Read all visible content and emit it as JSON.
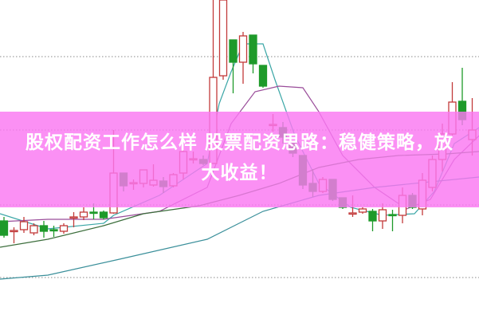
{
  "title": {
    "line1": "股权配资工作怎么样 股票配资思路：稳健策略，放",
    "line2": "大收益！"
  },
  "colors": {
    "up": "#c23a3a",
    "down": "#1e9a2a",
    "banner": "#fa78f2",
    "grid": "#888888"
  },
  "chart_data": {
    "type": "candlestick",
    "title": "",
    "xlabel": "",
    "ylabel": "",
    "ylim": [
      0,
      400
    ],
    "grid": true,
    "grid_values": [
      52,
      143,
      237,
      329
    ],
    "candles": [
      [
        123,
        105,
        128,
        102
      ],
      [
        110,
        111,
        115,
        95
      ],
      [
        112,
        122,
        128,
        108
      ],
      [
        108,
        117,
        120,
        105
      ],
      [
        117,
        110,
        123,
        102
      ],
      [
        112,
        111,
        117,
        103
      ],
      [
        110,
        117,
        120,
        107
      ],
      [
        127,
        128,
        134,
        115
      ],
      [
        128,
        134,
        140,
        124
      ],
      [
        134,
        133,
        145,
        125
      ],
      [
        134,
        127,
        136,
        125
      ],
      [
        133,
        183,
        237,
        132
      ],
      [
        183,
        167,
        183,
        160
      ],
      [
        170,
        171,
        175,
        162
      ],
      [
        170,
        187,
        187,
        165
      ],
      [
        168,
        174,
        194,
        166
      ],
      [
        173,
        166,
        178,
        158
      ],
      [
        167,
        181,
        183,
        165
      ],
      [
        183,
        210,
        212,
        175
      ],
      [
        200,
        201,
        210,
        195
      ],
      [
        200,
        195,
        205,
        193
      ],
      [
        195,
        303,
        400,
        195
      ],
      [
        305,
        400,
        400,
        300
      ],
      [
        350,
        322,
        350,
        283
      ],
      [
        322,
        355,
        360,
        295
      ],
      [
        356,
        320,
        356,
        308
      ],
      [
        318,
        292,
        318,
        290
      ],
      [
        243,
        244,
        257,
        235
      ],
      [
        240,
        228,
        247,
        220
      ],
      [
        220,
        208,
        222,
        203
      ],
      [
        205,
        168,
        205,
        163
      ],
      [
        170,
        160,
        188,
        153
      ],
      [
        160,
        175,
        178,
        158
      ],
      [
        175,
        150,
        175,
        148
      ],
      [
        152,
        140,
        152,
        138
      ],
      [
        132,
        133,
        155,
        128
      ],
      [
        134,
        138,
        140,
        132
      ],
      [
        135,
        123,
        138,
        110
      ],
      [
        123,
        137,
        145,
        113
      ],
      [
        131,
        130,
        137,
        110
      ],
      [
        130,
        155,
        165,
        120
      ],
      [
        155,
        140,
        158,
        138
      ],
      [
        138,
        174,
        183,
        130
      ],
      [
        165,
        200,
        205,
        160
      ],
      [
        200,
        232,
        245,
        185
      ],
      [
        232,
        272,
        297,
        230
      ],
      [
        273,
        250,
        315,
        243
      ],
      [
        225,
        237,
        277,
        205
      ]
    ],
    "candle_format": [
      "open",
      "close",
      "high",
      "low"
    ],
    "moving_averages": [
      {
        "color": "#3aa6a6",
        "points": [
          [
            0.6,
            132
          ],
          [
            5.4,
            113
          ],
          [
            11,
            120
          ],
          [
            12,
            130
          ],
          [
            16.6,
            155
          ],
          [
            21.4,
            195
          ],
          [
            22.6,
            270
          ],
          [
            23.8,
            310
          ],
          [
            25,
            345
          ],
          [
            27,
            345
          ],
          [
            28.2,
            300
          ],
          [
            30.2,
            230
          ],
          [
            32.6,
            170
          ],
          [
            35.8,
            140
          ],
          [
            39,
            130
          ],
          [
            42.2,
            132
          ],
          [
            44.2,
            160
          ],
          [
            46.2,
            220
          ],
          [
            48.7,
            240
          ]
        ]
      },
      {
        "color": "#9a4d9a",
        "points": [
          [
            0.6,
            122
          ],
          [
            5.4,
            125
          ],
          [
            11,
            125
          ],
          [
            16.6,
            135
          ],
          [
            21.4,
            165
          ],
          [
            23.8,
            245
          ],
          [
            26.2,
            285
          ],
          [
            28.6,
            292
          ],
          [
            31,
            290
          ],
          [
            32.6,
            260
          ],
          [
            35,
            205
          ],
          [
            38.2,
            165
          ],
          [
            41.4,
            138
          ],
          [
            43.8,
            150
          ],
          [
            46.2,
            200
          ],
          [
            48.7,
            230
          ]
        ]
      },
      {
        "color": "#3c6e3c",
        "points": [
          [
            0.6,
            90
          ],
          [
            5.4,
            100
          ],
          [
            11,
            117
          ],
          [
            15,
            132
          ],
          [
            20.6,
            142
          ],
          [
            24.6,
            155
          ],
          [
            28.6,
            170
          ],
          [
            32.6,
            190
          ],
          [
            36.6,
            200
          ],
          [
            40.6,
            205
          ],
          [
            45.4,
            207
          ],
          [
            48.7,
            210
          ]
        ]
      },
      {
        "color": "#3a8f9a",
        "points": [
          [
            0.6,
            50
          ],
          [
            5.4,
            55
          ],
          [
            12.6,
            75
          ],
          [
            21.4,
            100
          ],
          [
            24.6,
            120
          ],
          [
            27,
            135
          ],
          [
            32.6,
            155
          ],
          [
            38.2,
            165
          ],
          [
            43.8,
            172
          ],
          [
            48.7,
            178
          ]
        ]
      }
    ]
  }
}
